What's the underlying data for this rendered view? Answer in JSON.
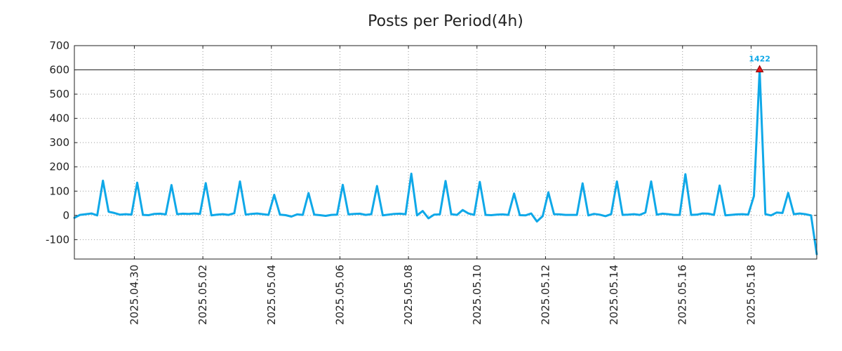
{
  "chart_data": {
    "type": "line",
    "title": "Posts per Period(4h)",
    "xlabel": "",
    "ylabel": "",
    "ylim": [
      -180,
      700
    ],
    "y_ticks": [
      700,
      600,
      500,
      400,
      300,
      200,
      100,
      0,
      -100
    ],
    "x_range": [
      "2025-04-28T06:00",
      "2025-05-19T22:00"
    ],
    "x_ticks": [
      {
        "date": "2025-04-30T00:00",
        "label": "2025.04.30"
      },
      {
        "date": "2025-05-02T00:00",
        "label": "2025.05.02"
      },
      {
        "date": "2025-05-04T00:00",
        "label": "2025.05.04"
      },
      {
        "date": "2025-05-06T00:00",
        "label": "2025.05.06"
      },
      {
        "date": "2025-05-08T00:00",
        "label": "2025.05.08"
      },
      {
        "date": "2025-05-10T00:00",
        "label": "2025.05.10"
      },
      {
        "date": "2025-05-12T00:00",
        "label": "2025.05.12"
      },
      {
        "date": "2025-05-14T00:00",
        "label": "2025.05.14"
      },
      {
        "date": "2025-05-16T00:00",
        "label": "2025.05.16"
      },
      {
        "date": "2025-05-18T00:00",
        "label": "2025.05.18"
      }
    ],
    "grid": true,
    "reference_line": 600,
    "series": [
      {
        "color": "#0fa8e8",
        "points": [
          [
            "2025-04-28T06:00",
            -10
          ],
          [
            "2025-04-28T10:00",
            2
          ],
          [
            "2025-04-28T14:00",
            5
          ],
          [
            "2025-04-28T18:00",
            8
          ],
          [
            "2025-04-28T22:00",
            0
          ],
          [
            "2025-04-29T02:00",
            143
          ],
          [
            "2025-04-29T06:00",
            15
          ],
          [
            "2025-04-29T10:00",
            10
          ],
          [
            "2025-04-29T14:00",
            3
          ],
          [
            "2025-04-29T18:00",
            5
          ],
          [
            "2025-04-29T22:00",
            3
          ],
          [
            "2025-04-30T02:00",
            135
          ],
          [
            "2025-04-30T06:00",
            2
          ],
          [
            "2025-04-30T10:00",
            1
          ],
          [
            "2025-04-30T14:00",
            6
          ],
          [
            "2025-04-30T18:00",
            7
          ],
          [
            "2025-04-30T22:00",
            4
          ],
          [
            "2025-05-01T02:00",
            125
          ],
          [
            "2025-05-01T06:00",
            5
          ],
          [
            "2025-05-01T10:00",
            7
          ],
          [
            "2025-05-01T14:00",
            6
          ],
          [
            "2025-05-01T18:00",
            8
          ],
          [
            "2025-05-01T22:00",
            6
          ],
          [
            "2025-05-02T02:00",
            133
          ],
          [
            "2025-05-02T06:00",
            0
          ],
          [
            "2025-05-02T10:00",
            3
          ],
          [
            "2025-05-02T14:00",
            5
          ],
          [
            "2025-05-02T18:00",
            2
          ],
          [
            "2025-05-02T22:00",
            9
          ],
          [
            "2025-05-03T02:00",
            140
          ],
          [
            "2025-05-03T06:00",
            3
          ],
          [
            "2025-05-03T10:00",
            6
          ],
          [
            "2025-05-03T14:00",
            8
          ],
          [
            "2025-05-03T18:00",
            5
          ],
          [
            "2025-05-03T22:00",
            2
          ],
          [
            "2025-05-04T02:00",
            85
          ],
          [
            "2025-05-04T06:00",
            3
          ],
          [
            "2025-05-04T10:00",
            1
          ],
          [
            "2025-05-04T14:00",
            -5
          ],
          [
            "2025-05-04T18:00",
            4
          ],
          [
            "2025-05-04T22:00",
            2
          ],
          [
            "2025-05-05T02:00",
            92
          ],
          [
            "2025-05-05T06:00",
            3
          ],
          [
            "2025-05-05T10:00",
            1
          ],
          [
            "2025-05-05T14:00",
            -2
          ],
          [
            "2025-05-05T18:00",
            2
          ],
          [
            "2025-05-05T22:00",
            3
          ],
          [
            "2025-05-06T02:00",
            126
          ],
          [
            "2025-05-06T06:00",
            4
          ],
          [
            "2025-05-06T10:00",
            6
          ],
          [
            "2025-05-06T14:00",
            7
          ],
          [
            "2025-05-06T18:00",
            2
          ],
          [
            "2025-05-06T22:00",
            5
          ],
          [
            "2025-05-07T02:00",
            121
          ],
          [
            "2025-05-07T06:00",
            0
          ],
          [
            "2025-05-07T10:00",
            3
          ],
          [
            "2025-05-07T14:00",
            6
          ],
          [
            "2025-05-07T18:00",
            7
          ],
          [
            "2025-05-07T22:00",
            5
          ],
          [
            "2025-05-08T02:00",
            172
          ],
          [
            "2025-05-08T06:00",
            0
          ],
          [
            "2025-05-08T10:00",
            18
          ],
          [
            "2025-05-08T14:00",
            -12
          ],
          [
            "2025-05-08T18:00",
            3
          ],
          [
            "2025-05-08T22:00",
            4
          ],
          [
            "2025-05-09T02:00",
            142
          ],
          [
            "2025-05-09T06:00",
            5
          ],
          [
            "2025-05-09T10:00",
            2
          ],
          [
            "2025-05-09T14:00",
            22
          ],
          [
            "2025-05-09T18:00",
            8
          ],
          [
            "2025-05-09T22:00",
            2
          ],
          [
            "2025-05-10T02:00",
            138
          ],
          [
            "2025-05-10T06:00",
            2
          ],
          [
            "2025-05-10T10:00",
            1
          ],
          [
            "2025-05-10T14:00",
            3
          ],
          [
            "2025-05-10T18:00",
            4
          ],
          [
            "2025-05-10T22:00",
            2
          ],
          [
            "2025-05-11T02:00",
            90
          ],
          [
            "2025-05-11T06:00",
            1
          ],
          [
            "2025-05-11T10:00",
            0
          ],
          [
            "2025-05-11T14:00",
            8
          ],
          [
            "2025-05-11T18:00",
            -25
          ],
          [
            "2025-05-11T22:00",
            -3
          ],
          [
            "2025-05-12T02:00",
            95
          ],
          [
            "2025-05-12T06:00",
            5
          ],
          [
            "2025-05-12T10:00",
            4
          ],
          [
            "2025-05-12T14:00",
            2
          ],
          [
            "2025-05-12T18:00",
            2
          ],
          [
            "2025-05-12T22:00",
            2
          ],
          [
            "2025-05-13T02:00",
            132
          ],
          [
            "2025-05-13T06:00",
            0
          ],
          [
            "2025-05-13T10:00",
            6
          ],
          [
            "2025-05-13T14:00",
            3
          ],
          [
            "2025-05-13T18:00",
            -3
          ],
          [
            "2025-05-13T22:00",
            5
          ],
          [
            "2025-05-14T02:00",
            140
          ],
          [
            "2025-05-14T06:00",
            2
          ],
          [
            "2025-05-14T10:00",
            3
          ],
          [
            "2025-05-14T14:00",
            5
          ],
          [
            "2025-05-14T18:00",
            2
          ],
          [
            "2025-05-14T22:00",
            12
          ],
          [
            "2025-05-15T02:00",
            140
          ],
          [
            "2025-05-15T06:00",
            3
          ],
          [
            "2025-05-15T10:00",
            7
          ],
          [
            "2025-05-15T14:00",
            5
          ],
          [
            "2025-05-15T18:00",
            2
          ],
          [
            "2025-05-15T22:00",
            2
          ],
          [
            "2025-05-16T02:00",
            170
          ],
          [
            "2025-05-16T06:00",
            2
          ],
          [
            "2025-05-16T10:00",
            3
          ],
          [
            "2025-05-16T14:00",
            8
          ],
          [
            "2025-05-16T18:00",
            7
          ],
          [
            "2025-05-16T22:00",
            2
          ],
          [
            "2025-05-17T02:00",
            123
          ],
          [
            "2025-05-17T06:00",
            0
          ],
          [
            "2025-05-17T10:00",
            2
          ],
          [
            "2025-05-17T14:00",
            4
          ],
          [
            "2025-05-17T18:00",
            5
          ],
          [
            "2025-05-17T22:00",
            3
          ],
          [
            "2025-05-18T02:00",
            80
          ],
          [
            "2025-05-18T06:00",
            600
          ],
          [
            "2025-05-18T10:00",
            5
          ],
          [
            "2025-05-18T14:00",
            0
          ],
          [
            "2025-05-18T18:00",
            12
          ],
          [
            "2025-05-18T22:00",
            10
          ],
          [
            "2025-05-19T02:00",
            93
          ],
          [
            "2025-05-19T06:00",
            5
          ],
          [
            "2025-05-19T10:00",
            8
          ],
          [
            "2025-05-19T14:00",
            5
          ],
          [
            "2025-05-19T18:00",
            0
          ],
          [
            "2025-05-19T22:00",
            -160
          ]
        ]
      }
    ],
    "peak": {
      "date": "2025-05-18T06:00",
      "value": 600,
      "label": "1422",
      "marker": "triangle",
      "marker_color": "#e8141c",
      "label_color": "#0fa8e8"
    }
  }
}
